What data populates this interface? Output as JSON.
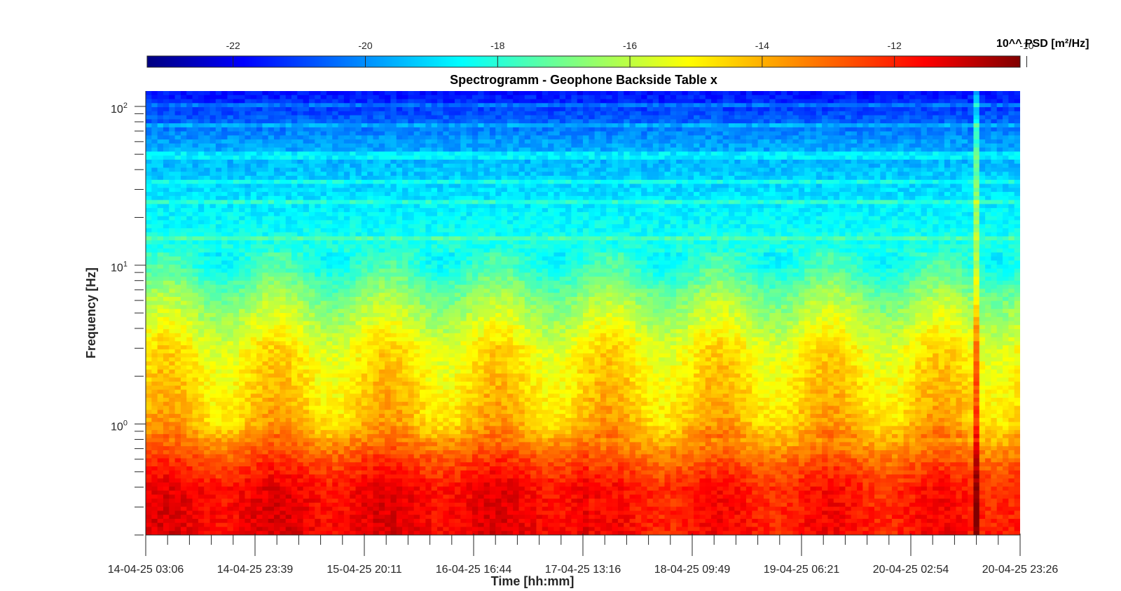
{
  "chart_data": {
    "type": "heatmap",
    "title": "Spectrogramm - Geophone Backside Table x",
    "xlabel": "Time [hh:mm]",
    "ylabel": "Frequency [Hz]",
    "y_scale": "log",
    "y_range_hz": [
      0.2,
      125
    ],
    "x_tick_labels": [
      "14-04-25 03:06",
      "14-04-25 23:39",
      "15-04-25 20:11",
      "16-04-25 16:44",
      "17-04-25 13:16",
      "18-04-25 09:49",
      "19-04-25 06:21",
      "20-04-25 02:54",
      "20-04-25 23:26"
    ],
    "y_ticks": [
      {
        "base": "10",
        "exp": "0",
        "value": 1
      },
      {
        "base": "10",
        "exp": "1",
        "value": 10
      },
      {
        "base": "10",
        "exp": "2",
        "value": 100
      }
    ],
    "colorbar": {
      "label": "10^^ PSD [m²/Hz]",
      "colormap": "jet",
      "range": [
        -23.3,
        -10.1
      ],
      "ticks": [
        "-22",
        "-20",
        "-18",
        "-16",
        "-14",
        "-12",
        "-10"
      ]
    },
    "psd_profile": [
      {
        "freq_hz": 0.2,
        "log_psd": -11.5
      },
      {
        "freq_hz": 0.4,
        "log_psd": -11.7
      },
      {
        "freq_hz": 0.6,
        "log_psd": -12.6
      },
      {
        "freq_hz": 1,
        "log_psd": -14.2
      },
      {
        "freq_hz": 3,
        "log_psd": -15.0
      },
      {
        "freq_hz": 6,
        "log_psd": -16.4
      },
      {
        "freq_hz": 10,
        "log_psd": -17.8
      },
      {
        "freq_hz": 25,
        "log_psd": -18.6
      },
      {
        "freq_hz": 60,
        "log_psd": -19.6
      },
      {
        "freq_hz": 125,
        "log_psd": -21.5
      }
    ],
    "events": [
      {
        "time": "20-04-25 16:00",
        "description": "strong broadband transient"
      }
    ]
  }
}
